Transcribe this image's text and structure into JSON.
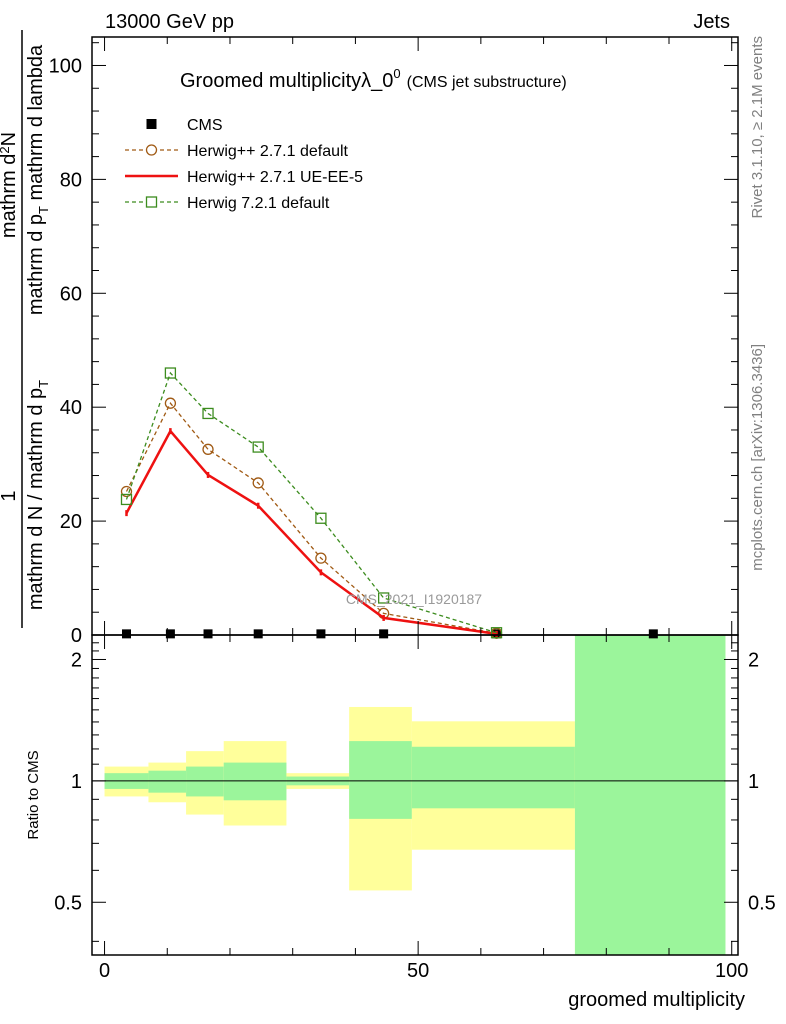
{
  "header": {
    "left": "13000 GeV pp",
    "right": "Jets"
  },
  "title": {
    "main": "Groomed multiplicityλ_0",
    "superscript": "0",
    "sub": "(CMS jet substructure)"
  },
  "side_labels": {
    "rivet": "Rivet 3.1.10, ≥ 2.1M events",
    "mcplots": "mcplots.cern.ch [arXiv:1306.3436]"
  },
  "watermark": "CMS_2021_I1920187",
  "ylabel_main": {
    "numerator_one": "1",
    "numerator_two": "mathrm d",
    "numerator_two_sup": "2",
    "numerator_two_end": "N",
    "denominator_one": "mathrm d N / mathrm d p",
    "denominator_one_sub": "T",
    "denominator_two": "mathrm d p",
    "denominator_two_sub": "T",
    "denominator_two_end": " mathrm d lambda"
  },
  "ylabel_ratio": "Ratio to CMS",
  "xlabel": "groomed multiplicity",
  "chart_data": [
    {
      "type": "line",
      "panel": "main",
      "xlim": [
        -2,
        101
      ],
      "ylim": [
        0,
        105
      ],
      "xticks": [
        0,
        50,
        100
      ],
      "yticks": [
        0,
        20,
        40,
        60,
        80,
        100
      ],
      "ytick_labels": [
        "0",
        "20",
        "40",
        "60",
        "80",
        "100"
      ],
      "series": [
        {
          "name": "CMS",
          "style": "points",
          "color": "#000000",
          "x": [
            3.5,
            10.5,
            16.5,
            24.5,
            34.5,
            44.5,
            62.5,
            87.5
          ],
          "y": [
            0.2,
            0.2,
            0.2,
            0.2,
            0.2,
            0.2,
            0.2,
            0.2
          ]
        },
        {
          "name": "Herwig++ 2.7.1 default",
          "style": "dashed-circle",
          "color": "#a05a14",
          "x": [
            3.5,
            10.5,
            16.5,
            24.5,
            34.5,
            44.5,
            62.5
          ],
          "y": [
            25.2,
            40.7,
            32.6,
            26.7,
            13.5,
            3.8,
            0.3
          ]
        },
        {
          "name": "Herwig++ 2.7.1 UE-EE-5",
          "style": "solid",
          "color": "#ee1111",
          "x": [
            3.5,
            10.5,
            16.5,
            24.5,
            34.5,
            44.5,
            62.5
          ],
          "y": [
            21.4,
            35.8,
            28.1,
            22.7,
            11.0,
            3.0,
            0.2
          ]
        },
        {
          "name": "Herwig 7.2.1 default",
          "style": "dashed-square",
          "color": "#3c8c1e",
          "x": [
            3.5,
            10.5,
            16.5,
            24.5,
            34.5,
            44.5,
            62.5
          ],
          "y": [
            23.8,
            46.0,
            38.9,
            33.0,
            20.5,
            6.5,
            0.4
          ]
        }
      ]
    },
    {
      "type": "area",
      "panel": "ratio",
      "xlim": [
        -2,
        101
      ],
      "ylim": [
        0.37,
        2.3
      ],
      "yticks": [
        0.5,
        1,
        2
      ],
      "ytick_labels": [
        "0.5",
        "1",
        "2"
      ],
      "xtick_labels": [
        "0",
        "50",
        "100"
      ],
      "reference_line": 1,
      "bins": [
        {
          "lo": 0,
          "hi": 7,
          "green": [
            0.955,
            1.045
          ],
          "yellow": [
            0.915,
            1.085
          ]
        },
        {
          "lo": 7,
          "hi": 13,
          "green": [
            0.935,
            1.06
          ],
          "yellow": [
            0.885,
            1.11
          ]
        },
        {
          "lo": 13,
          "hi": 19,
          "green": [
            0.915,
            1.085
          ],
          "yellow": [
            0.825,
            1.185
          ]
        },
        {
          "lo": 19,
          "hi": 29,
          "green": [
            0.895,
            1.11
          ],
          "yellow": [
            0.775,
            1.255
          ]
        },
        {
          "lo": 29,
          "hi": 39,
          "green": [
            0.975,
            1.025
          ],
          "yellow": [
            0.955,
            1.045
          ]
        },
        {
          "lo": 39,
          "hi": 49,
          "green": [
            0.805,
            1.255
          ],
          "yellow": [
            0.535,
            1.525
          ]
        },
        {
          "lo": 49,
          "hi": 75,
          "green": [
            0.855,
            1.215
          ],
          "yellow": [
            0.675,
            1.405
          ]
        },
        {
          "lo": 75,
          "hi": 99,
          "green": [
            0.3,
            3.0
          ],
          "yellow": [
            0.3,
            3.0
          ]
        }
      ],
      "colors": {
        "green": "#9bf59b",
        "yellow": "#ffff9b"
      }
    }
  ]
}
